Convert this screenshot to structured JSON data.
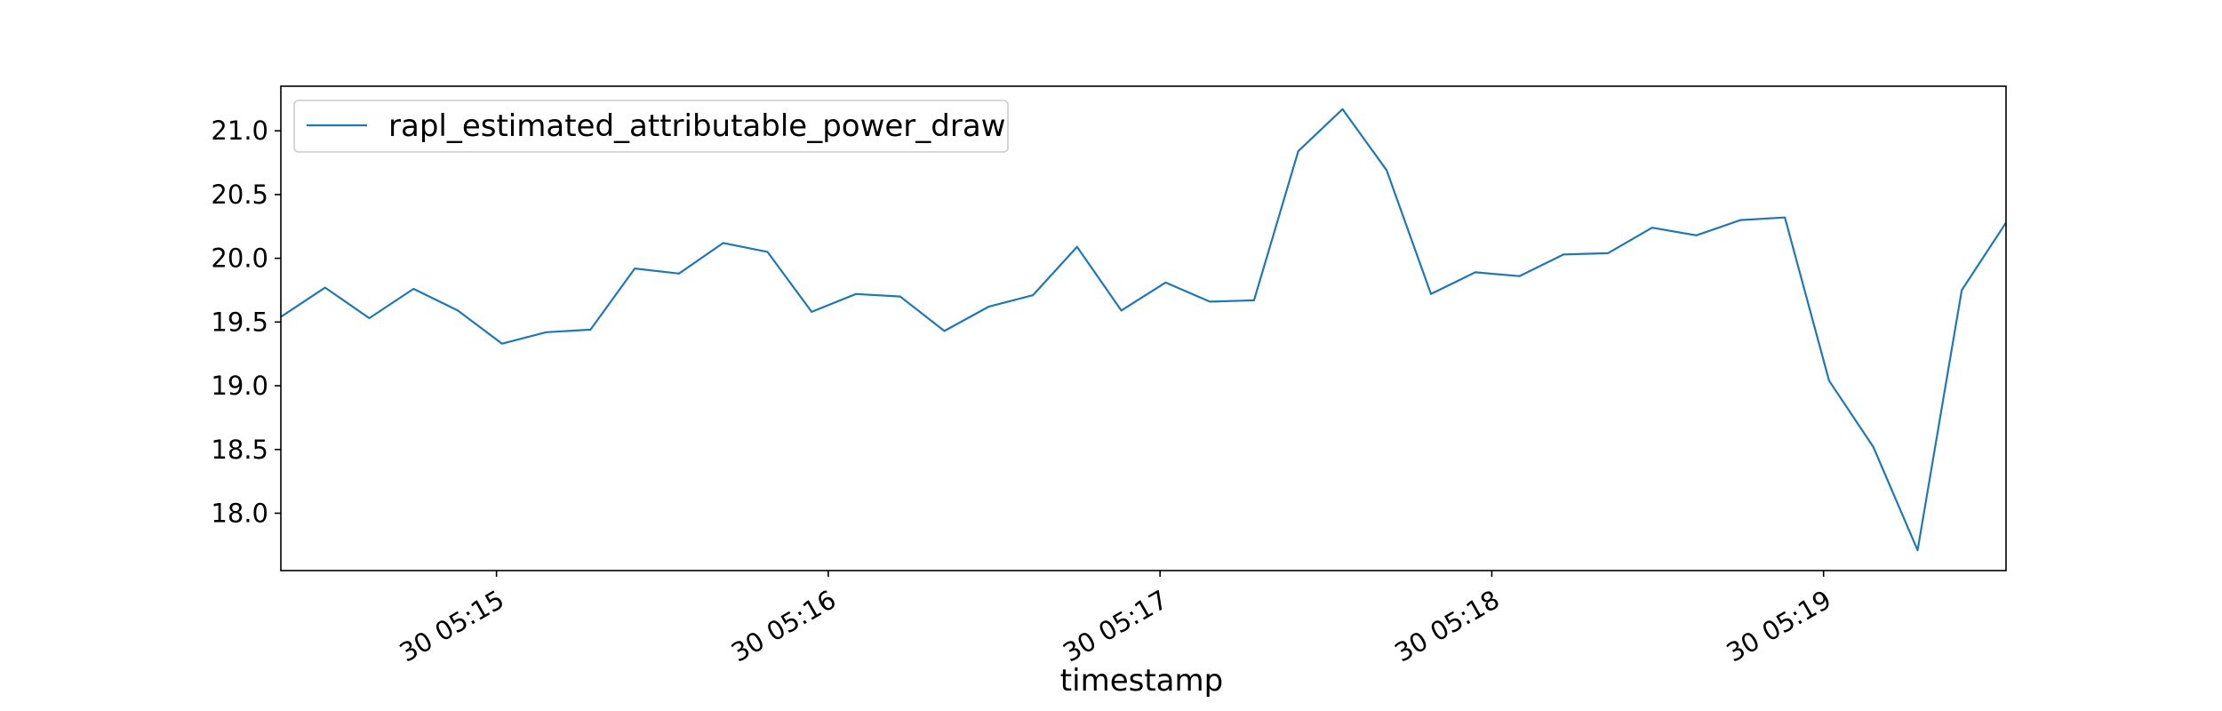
{
  "chart_data": {
    "type": "line",
    "title": "",
    "xlabel": "timestamp",
    "ylabel": "",
    "grid": false,
    "legend_position": "top-left",
    "x_tick_labels": [
      "30 05:15",
      "30 05:16",
      "30 05:17",
      "30 05:18",
      "30 05:19"
    ],
    "y_ticks": [
      "18.0",
      "18.5",
      "19.0",
      "19.5",
      "20.0",
      "20.5",
      "21.0"
    ],
    "ylim": [
      17.55,
      21.35
    ],
    "series": [
      {
        "name": "rapl_estimated_attributable_power_draw",
        "color": "#1f77b4",
        "x": [
          "05:14:21",
          "05:14:29",
          "05:14:37",
          "05:14:45",
          "05:14:53",
          "05:15:01",
          "05:15:09",
          "05:15:17",
          "05:15:25",
          "05:15:33",
          "05:15:41",
          "05:15:49",
          "05:15:57",
          "05:16:05",
          "05:16:13",
          "05:16:21",
          "05:16:29",
          "05:16:37",
          "05:16:45",
          "05:16:53",
          "05:17:01",
          "05:17:09",
          "05:17:17",
          "05:17:25",
          "05:17:33",
          "05:17:41",
          "05:17:49",
          "05:17:57",
          "05:18:05",
          "05:18:13",
          "05:18:21",
          "05:18:29",
          "05:18:37",
          "05:18:45",
          "05:18:53",
          "05:19:01",
          "05:19:09",
          "05:19:17",
          "05:19:25",
          "05:19:33"
        ],
        "values": [
          19.54,
          19.77,
          19.53,
          19.76,
          19.59,
          19.33,
          19.42,
          19.44,
          19.92,
          19.88,
          20.12,
          20.05,
          19.58,
          19.72,
          19.7,
          19.43,
          19.62,
          19.71,
          20.09,
          19.59,
          19.81,
          19.66,
          19.67,
          20.84,
          21.17,
          20.69,
          19.72,
          19.89,
          19.86,
          20.03,
          20.04,
          20.24,
          20.18,
          20.3,
          20.32,
          19.04,
          18.52,
          17.71,
          19.75,
          20.28
        ]
      }
    ]
  }
}
